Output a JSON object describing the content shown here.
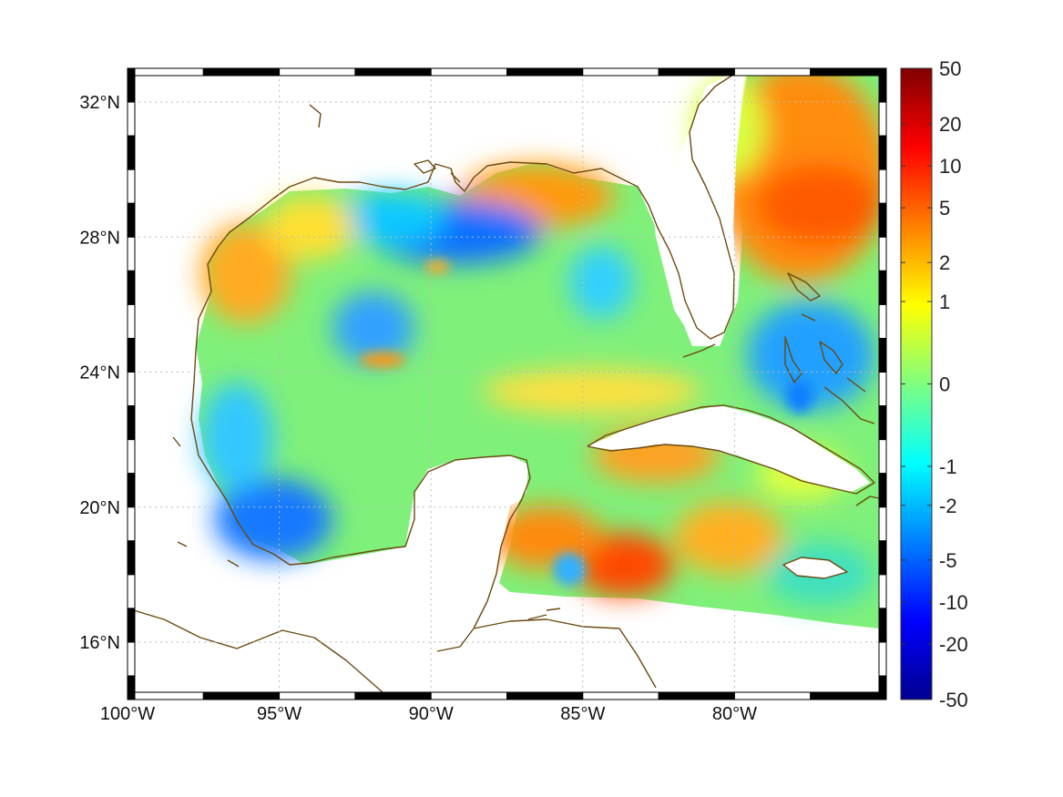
{
  "map": {
    "region": "Gulf of Mexico and western Caribbean",
    "projection": "latitude-longitude",
    "lon_range": [
      -100,
      -75
    ],
    "lat_range": [
      14.3,
      33
    ],
    "lon_ticks": [
      {
        "value": -100,
        "label": "100°W"
      },
      {
        "value": -95,
        "label": "95°W"
      },
      {
        "value": -90,
        "label": "90°W"
      },
      {
        "value": -85,
        "label": "85°W"
      },
      {
        "value": -80,
        "label": "80°W"
      }
    ],
    "lat_ticks": [
      {
        "value": 32,
        "label": "32°N"
      },
      {
        "value": 28,
        "label": "28°N"
      },
      {
        "value": 24,
        "label": "24°N"
      },
      {
        "value": 20,
        "label": "20°N"
      },
      {
        "value": 16,
        "label": "16°N"
      }
    ],
    "grid": true,
    "frame_style": "alternating black and white border",
    "colors": {
      "coastline": "#6b4a10",
      "grid": "#bbbbbb",
      "frame": "#000000",
      "land": "#ffffff"
    }
  },
  "colorbar": {
    "colormap": "jet",
    "scale": "nonlinear",
    "ticks": [
      {
        "value": 50,
        "label": "50"
      },
      {
        "value": 20,
        "label": "20"
      },
      {
        "value": 10,
        "label": "10"
      },
      {
        "value": 5,
        "label": "5"
      },
      {
        "value": 2,
        "label": "2"
      },
      {
        "value": 1,
        "label": "1"
      },
      {
        "value": 0,
        "label": "0"
      },
      {
        "value": -1,
        "label": "-1"
      },
      {
        "value": -2,
        "label": "-2"
      },
      {
        "value": -5,
        "label": "-5"
      },
      {
        "value": -10,
        "label": "-10"
      },
      {
        "value": -20,
        "label": "-20"
      },
      {
        "value": -50,
        "label": "-50"
      }
    ]
  },
  "field_features": [
    {
      "name": "Caribbean maximum",
      "lon": -83.5,
      "lat": 18.2,
      "value": 8
    },
    {
      "name": "Atlantic off Florida",
      "lon": -77.5,
      "lat": 29,
      "value": 6
    },
    {
      "name": "Mississippi outflow",
      "lon": -87.5,
      "lat": 29.2,
      "value": 6
    },
    {
      "name": "Western Gulf warm",
      "lon": -96.5,
      "lat": 27,
      "value": 3
    },
    {
      "name": "Northern Gulf minimum",
      "lon": -89.5,
      "lat": 28.1,
      "value": -5
    },
    {
      "name": "Bay of Campeche minimum",
      "lon": -94.8,
      "lat": 19,
      "value": -5
    },
    {
      "name": "Bahamas minimum",
      "lon": -78.5,
      "lat": 24.5,
      "value": -3
    }
  ]
}
